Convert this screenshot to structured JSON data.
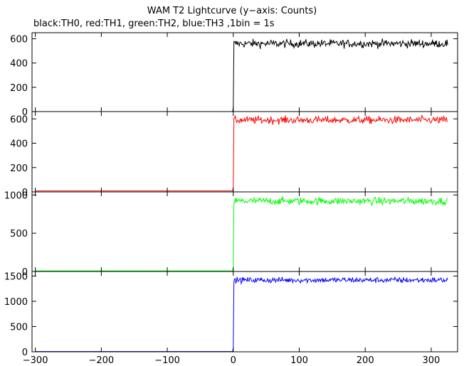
{
  "chart_data": {
    "type": "line",
    "title": "WAM T2 Lightcurve (y−axis: Counts)",
    "subtitle": "black:TH0, red:TH1, green:TH2, blue:TH3 ,1bin = 1s",
    "xlim": [
      -305,
      340
    ],
    "x_ticks": [
      -300,
      -200,
      -100,
      0,
      100,
      200,
      300
    ],
    "x_tick_labels": [
      "−300",
      "−200",
      "−100",
      "0",
      "100",
      "200",
      "300"
    ],
    "onset_x": 0,
    "grid": false,
    "panels": [
      {
        "series_label": "TH0",
        "color": "#000000",
        "ylim": [
          0,
          650
        ],
        "y_ticks": [
          0,
          200,
          400,
          600
        ],
        "pre_level": 0,
        "post_level": 560,
        "noise": 24,
        "x_end": 325
      },
      {
        "series_label": "TH1",
        "color": "#ff0000",
        "ylim": [
          0,
          660
        ],
        "y_ticks": [
          0,
          200,
          400,
          600
        ],
        "pre_level": 8,
        "post_level": 590,
        "noise": 22,
        "x_end": 325
      },
      {
        "series_label": "TH2",
        "color": "#00ff00",
        "ylim": [
          0,
          1040
        ],
        "y_ticks": [
          0,
          500,
          1000
        ],
        "pre_level": 8,
        "post_level": 920,
        "noise": 35,
        "x_end": 325
      },
      {
        "series_label": "TH3",
        "color": "#0000ff",
        "ylim": [
          0,
          1590
        ],
        "y_ticks": [
          0,
          500,
          1000,
          1500
        ],
        "pre_level": 5,
        "post_level": 1420,
        "noise": 40,
        "x_end": 325
      }
    ]
  }
}
